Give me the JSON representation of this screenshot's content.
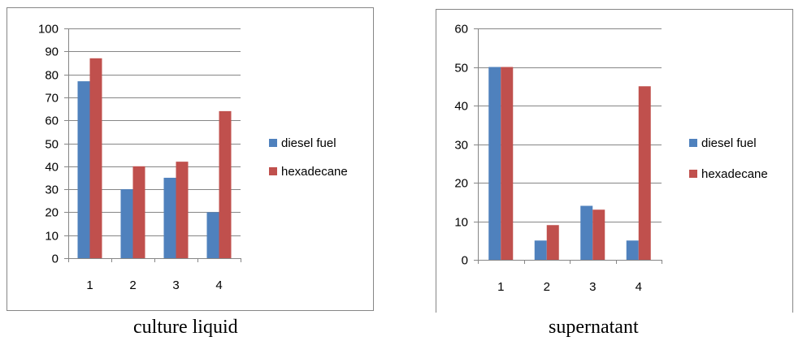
{
  "chart_data": [
    {
      "type": "bar",
      "caption": "culture liquid",
      "categories": [
        "1",
        "2",
        "3",
        "4"
      ],
      "series": [
        {
          "name": "diesel fuel",
          "values": [
            77,
            30,
            35,
            20
          ],
          "color": "#4F81BD"
        },
        {
          "name": "hexadecane",
          "values": [
            87,
            40,
            42,
            64
          ],
          "color": "#C0504D"
        }
      ],
      "ylim": [
        0,
        100
      ],
      "yticks": [
        "0",
        "10",
        "20",
        "30",
        "40",
        "50",
        "60",
        "70",
        "80",
        "90",
        "100"
      ],
      "grid": true,
      "legend_position": "right"
    },
    {
      "type": "bar",
      "caption": "supernatant",
      "categories": [
        "1",
        "2",
        "3",
        "4"
      ],
      "series": [
        {
          "name": "diesel fuel",
          "values": [
            50,
            5,
            14,
            5
          ],
          "color": "#4F81BD"
        },
        {
          "name": "hexadecane",
          "values": [
            50,
            9,
            13,
            45
          ],
          "color": "#C0504D"
        }
      ],
      "ylim": [
        0,
        60
      ],
      "yticks": [
        "0",
        "10",
        "20",
        "30",
        "40",
        "50",
        "60"
      ],
      "grid": true,
      "legend_position": "right"
    }
  ]
}
